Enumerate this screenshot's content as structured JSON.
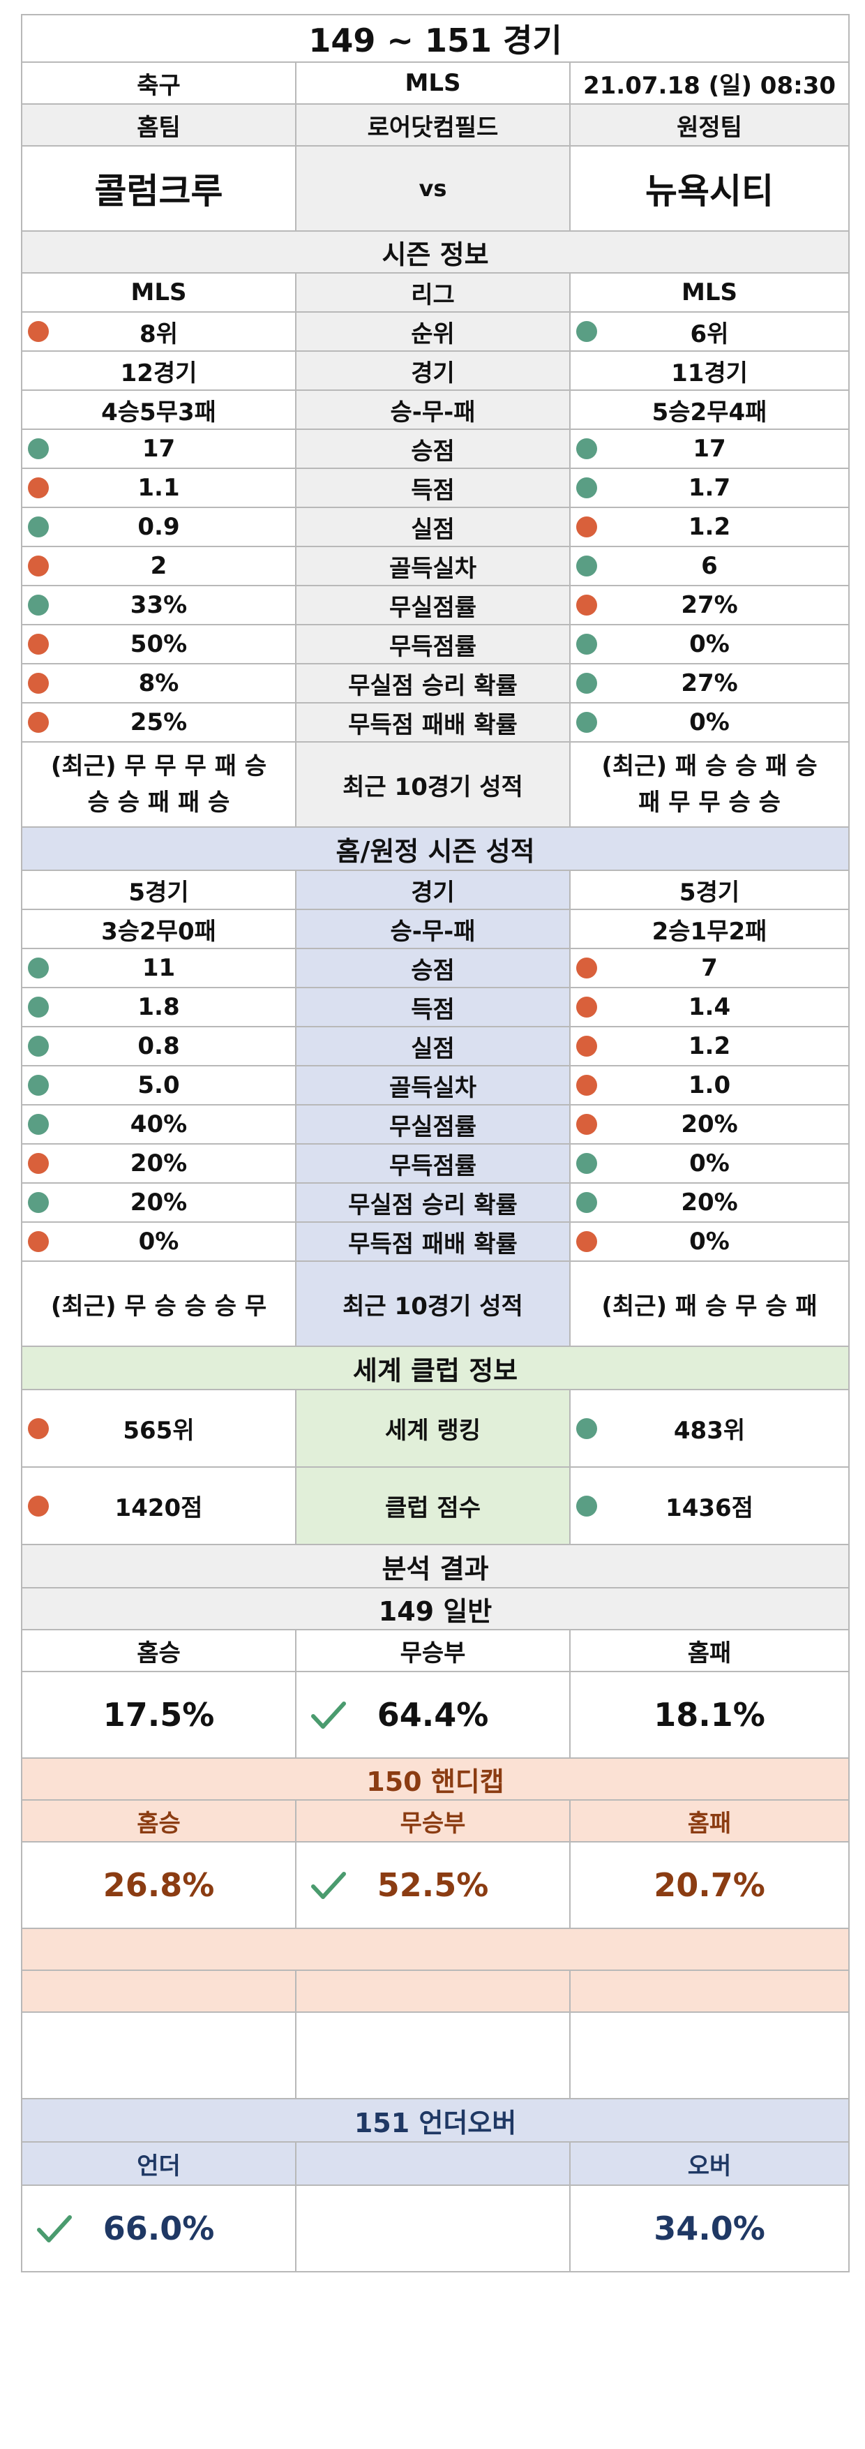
{
  "header": {
    "title": "149 ~ 151 경기",
    "sport": "축구",
    "league": "MLS",
    "datetime": "21.07.18 (일) 08:30",
    "home_label": "홈팀",
    "venue": "로어닷컴필드",
    "away_label": "원정팀",
    "home_team": "콜럼크루",
    "vs": "vs",
    "away_team": "뉴욕시티"
  },
  "season": {
    "title": "시즌 정보",
    "rows": [
      {
        "label": "리그",
        "home": "MLS",
        "away": "MLS",
        "home_dot": "",
        "away_dot": ""
      },
      {
        "label": "순위",
        "home": "8위",
        "away": "6위",
        "home_dot": "red",
        "away_dot": "teal"
      },
      {
        "label": "경기",
        "home": "12경기",
        "away": "11경기",
        "home_dot": "",
        "away_dot": ""
      },
      {
        "label": "승-무-패",
        "home": "4승5무3패",
        "away": "5승2무4패",
        "home_dot": "",
        "away_dot": ""
      },
      {
        "label": "승점",
        "home": "17",
        "away": "17",
        "home_dot": "teal",
        "away_dot": "teal"
      },
      {
        "label": "득점",
        "home": "1.1",
        "away": "1.7",
        "home_dot": "red",
        "away_dot": "teal"
      },
      {
        "label": "실점",
        "home": "0.9",
        "away": "1.2",
        "home_dot": "teal",
        "away_dot": "red"
      },
      {
        "label": "골득실차",
        "home": "2",
        "away": "6",
        "home_dot": "red",
        "away_dot": "teal"
      },
      {
        "label": "무실점률",
        "home": "33%",
        "away": "27%",
        "home_dot": "teal",
        "away_dot": "red"
      },
      {
        "label": "무득점률",
        "home": "50%",
        "away": "0%",
        "home_dot": "red",
        "away_dot": "teal"
      },
      {
        "label": "무실점 승리 확률",
        "home": "8%",
        "away": "27%",
        "home_dot": "red",
        "away_dot": "teal"
      },
      {
        "label": "무득점 패배 확률",
        "home": "25%",
        "away": "0%",
        "home_dot": "red",
        "away_dot": "teal"
      }
    ],
    "recent_label": "최근 10경기 성적",
    "recent_home_1": "(최근) 무 무 무 패 승",
    "recent_home_2": "승 승 패 패 승",
    "recent_away_1": "(최근) 패 승 승 패 승",
    "recent_away_2": "패 무 무 승 승"
  },
  "homeaway": {
    "title": "홈/원정 시즌 성적",
    "rows": [
      {
        "label": "경기",
        "home": "5경기",
        "away": "5경기",
        "home_dot": "",
        "away_dot": ""
      },
      {
        "label": "승-무-패",
        "home": "3승2무0패",
        "away": "2승1무2패",
        "home_dot": "",
        "away_dot": ""
      },
      {
        "label": "승점",
        "home": "11",
        "away": "7",
        "home_dot": "teal",
        "away_dot": "red"
      },
      {
        "label": "득점",
        "home": "1.8",
        "away": "1.4",
        "home_dot": "teal",
        "away_dot": "red"
      },
      {
        "label": "실점",
        "home": "0.8",
        "away": "1.2",
        "home_dot": "teal",
        "away_dot": "red"
      },
      {
        "label": "골득실차",
        "home": "5.0",
        "away": "1.0",
        "home_dot": "teal",
        "away_dot": "red"
      },
      {
        "label": "무실점률",
        "home": "40%",
        "away": "20%",
        "home_dot": "teal",
        "away_dot": "red"
      },
      {
        "label": "무득점률",
        "home": "20%",
        "away": "0%",
        "home_dot": "red",
        "away_dot": "teal"
      },
      {
        "label": "무실점 승리 확률",
        "home": "20%",
        "away": "20%",
        "home_dot": "teal",
        "away_dot": "teal"
      },
      {
        "label": "무득점 패배 확률",
        "home": "0%",
        "away": "0%",
        "home_dot": "red",
        "away_dot": "red"
      }
    ],
    "recent_label": "최근 10경기 성적",
    "recent_home": "(최근) 무 승 승 승 무",
    "recent_away": "(최근) 패 승 무 승 패"
  },
  "world": {
    "title": "세계 클럽 정보",
    "rows": [
      {
        "label": "세계 랭킹",
        "home": "565위",
        "away": "483위",
        "home_dot": "red",
        "away_dot": "teal"
      },
      {
        "label": "클럽 점수",
        "home": "1420점",
        "away": "1436점",
        "home_dot": "red",
        "away_dot": "teal"
      }
    ]
  },
  "analysis": {
    "title": "분석 결과",
    "general": {
      "title": "149 일반",
      "h1": "홈승",
      "h2": "무승부",
      "h3": "홈패",
      "v1": "17.5%",
      "v2": "64.4%",
      "v3": "18.1%",
      "checked": "v2"
    },
    "handicap": {
      "title": "150 핸디캡",
      "h1": "홈승",
      "h2": "무승부",
      "h3": "홈패",
      "v1": "26.8%",
      "v2": "52.5%",
      "v3": "20.7%",
      "checked": "v2"
    },
    "underover": {
      "title": "151 언더오버",
      "h1": "언더",
      "h3": "오버",
      "v1": "66.0%",
      "v3": "34.0%",
      "checked": "v1"
    }
  },
  "colors": {
    "red_dot": "#d9603b",
    "teal_dot": "#5a9e84",
    "check": "#4a9b6e",
    "handicap_text": "#8b3c12",
    "underover_text": "#1f3864"
  }
}
